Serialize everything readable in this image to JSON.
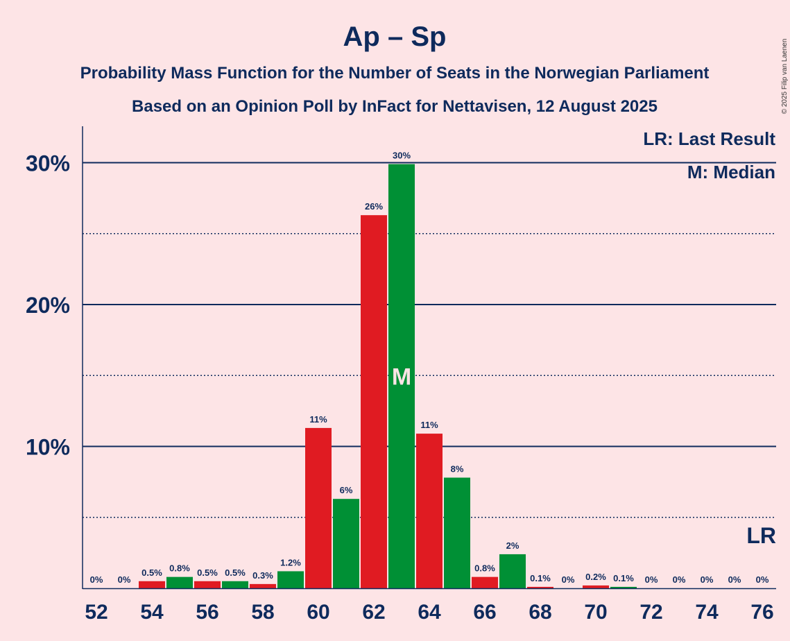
{
  "chart_data": {
    "type": "bar",
    "title": "Ap – Sp",
    "subtitle_lines": [
      "Probability Mass Function for the Number of Seats in the Norwegian Parliament",
      "Based on an Opinion Poll by InFact for Nettavisen, 12 August 2025"
    ],
    "copyright": "© 2025 Filip van Laenen",
    "x": [
      52,
      53,
      54,
      55,
      56,
      57,
      58,
      59,
      60,
      61,
      62,
      63,
      64,
      65,
      66,
      67,
      68,
      69,
      70,
      71,
      72,
      73,
      74,
      75,
      76
    ],
    "values": [
      0,
      0,
      0.5,
      0.8,
      0.5,
      0.5,
      0.3,
      1.2,
      11.3,
      6.3,
      26.3,
      29.9,
      10.9,
      7.8,
      0.8,
      2.4,
      0.1,
      0,
      0.2,
      0.1,
      0,
      0,
      0,
      0,
      0
    ],
    "value_labels": [
      "0%",
      "0%",
      "0.5%",
      "0.8%",
      "0.5%",
      "0.5%",
      "0.3%",
      "1.2%",
      "11%",
      "6%",
      "26%",
      "30%",
      "11%",
      "8%",
      "0.8%",
      "2%",
      "0.1%",
      "0%",
      "0.2%",
      "0.1%",
      "0%",
      "0%",
      "0%",
      "0%",
      "0%"
    ],
    "ylim": [
      0,
      32.5
    ],
    "yticks": [
      {
        "value": 10,
        "label": "10%"
      },
      {
        "value": 20,
        "label": "20%"
      },
      {
        "value": 30,
        "label": "30%"
      }
    ],
    "minor_gridlines": [
      5,
      15,
      25
    ],
    "xtick_labels": [
      "52",
      "54",
      "56",
      "58",
      "60",
      "62",
      "64",
      "66",
      "68",
      "70",
      "72",
      "74",
      "76"
    ],
    "xtick_values": [
      52,
      54,
      56,
      58,
      60,
      62,
      64,
      66,
      68,
      70,
      72,
      74,
      76
    ],
    "colors": {
      "even": "#E01B22",
      "odd": "#009035",
      "text": "#0E2A5C",
      "background": "#FDE4E6"
    },
    "median": {
      "seat": 63,
      "marker": "M"
    },
    "last_result": {
      "seat": 76,
      "marker": "LR"
    },
    "legend": [
      "LR: Last Result",
      "M: Median"
    ],
    "legend_placement": "top-right"
  }
}
